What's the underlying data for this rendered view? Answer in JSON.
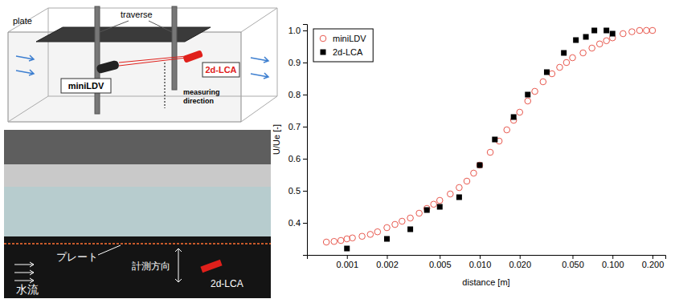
{
  "chart_data": {
    "type": "scatter",
    "log": "x",
    "grid": false,
    "legend": "upper left",
    "x_label": "distance [m]",
    "y_label": "U/Ue [-]",
    "xlim": [
      0.0005,
      0.25
    ],
    "xticks": [
      0.001,
      0.002,
      0.005,
      {
        "value": 0.01,
        "label": "0.010"
      },
      {
        "value": 0.02,
        "label": "0.020"
      },
      {
        "value": 0.05,
        "label": "0.050"
      },
      {
        "value": 0.1,
        "label": "0.100"
      },
      {
        "value": 0.2,
        "label": "0.200"
      }
    ],
    "ylim": [
      0.3,
      1.02
    ],
    "yticks": [
      0.4,
      0.5,
      0.6,
      0.7,
      0.8,
      0.9,
      {
        "value": 1.0,
        "label": "1.0"
      }
    ],
    "series": [
      {
        "name": "miniLDV",
        "color": "#e8594f",
        "marker": "circle",
        "x": [
          0.0007,
          0.0008,
          0.0009,
          0.001,
          0.0011,
          0.0013,
          0.0015,
          0.0017,
          0.002,
          0.0023,
          0.0026,
          0.003,
          0.0035,
          0.004,
          0.0045,
          0.005,
          0.006,
          0.007,
          0.008,
          0.009,
          0.01,
          0.012,
          0.014,
          0.016,
          0.018,
          0.02,
          0.023,
          0.026,
          0.03,
          0.035,
          0.04,
          0.045,
          0.05,
          0.06,
          0.07,
          0.08,
          0.09,
          0.1,
          0.12,
          0.14,
          0.16,
          0.18,
          0.2
        ],
        "values": [
          0.34,
          0.342,
          0.345,
          0.35,
          0.353,
          0.358,
          0.364,
          0.372,
          0.385,
          0.395,
          0.405,
          0.415,
          0.43,
          0.445,
          0.458,
          0.47,
          0.49,
          0.51,
          0.53,
          0.555,
          0.58,
          0.62,
          0.655,
          0.69,
          0.72,
          0.745,
          0.78,
          0.81,
          0.84,
          0.865,
          0.885,
          0.9,
          0.915,
          0.93,
          0.945,
          0.958,
          0.968,
          0.977,
          0.99,
          0.996,
          1.0,
          1.0,
          1.0
        ]
      },
      {
        "name": "2d-LCA",
        "color": "#000000",
        "marker": "square",
        "x": [
          0.001,
          0.002,
          0.003,
          0.004,
          0.005,
          0.007,
          0.01,
          0.013,
          0.018,
          0.023,
          0.032,
          0.043,
          0.053,
          0.063,
          0.073,
          0.09,
          0.1
        ],
        "values": [
          0.32,
          0.35,
          0.38,
          0.44,
          0.45,
          0.48,
          0.58,
          0.66,
          0.73,
          0.8,
          0.87,
          0.93,
          0.97,
          0.98,
          1.0,
          1.0,
          0.99
        ]
      }
    ]
  },
  "diagram": {
    "plate": "plate",
    "traverse": "traverse",
    "miniLDV": "miniLDV",
    "lca": "2d-LCA",
    "measuring": "measuring direction"
  },
  "photo": {
    "plate": "プレート",
    "flow": "水流",
    "measuring": "計測方向",
    "lca": "2d-LCA"
  }
}
